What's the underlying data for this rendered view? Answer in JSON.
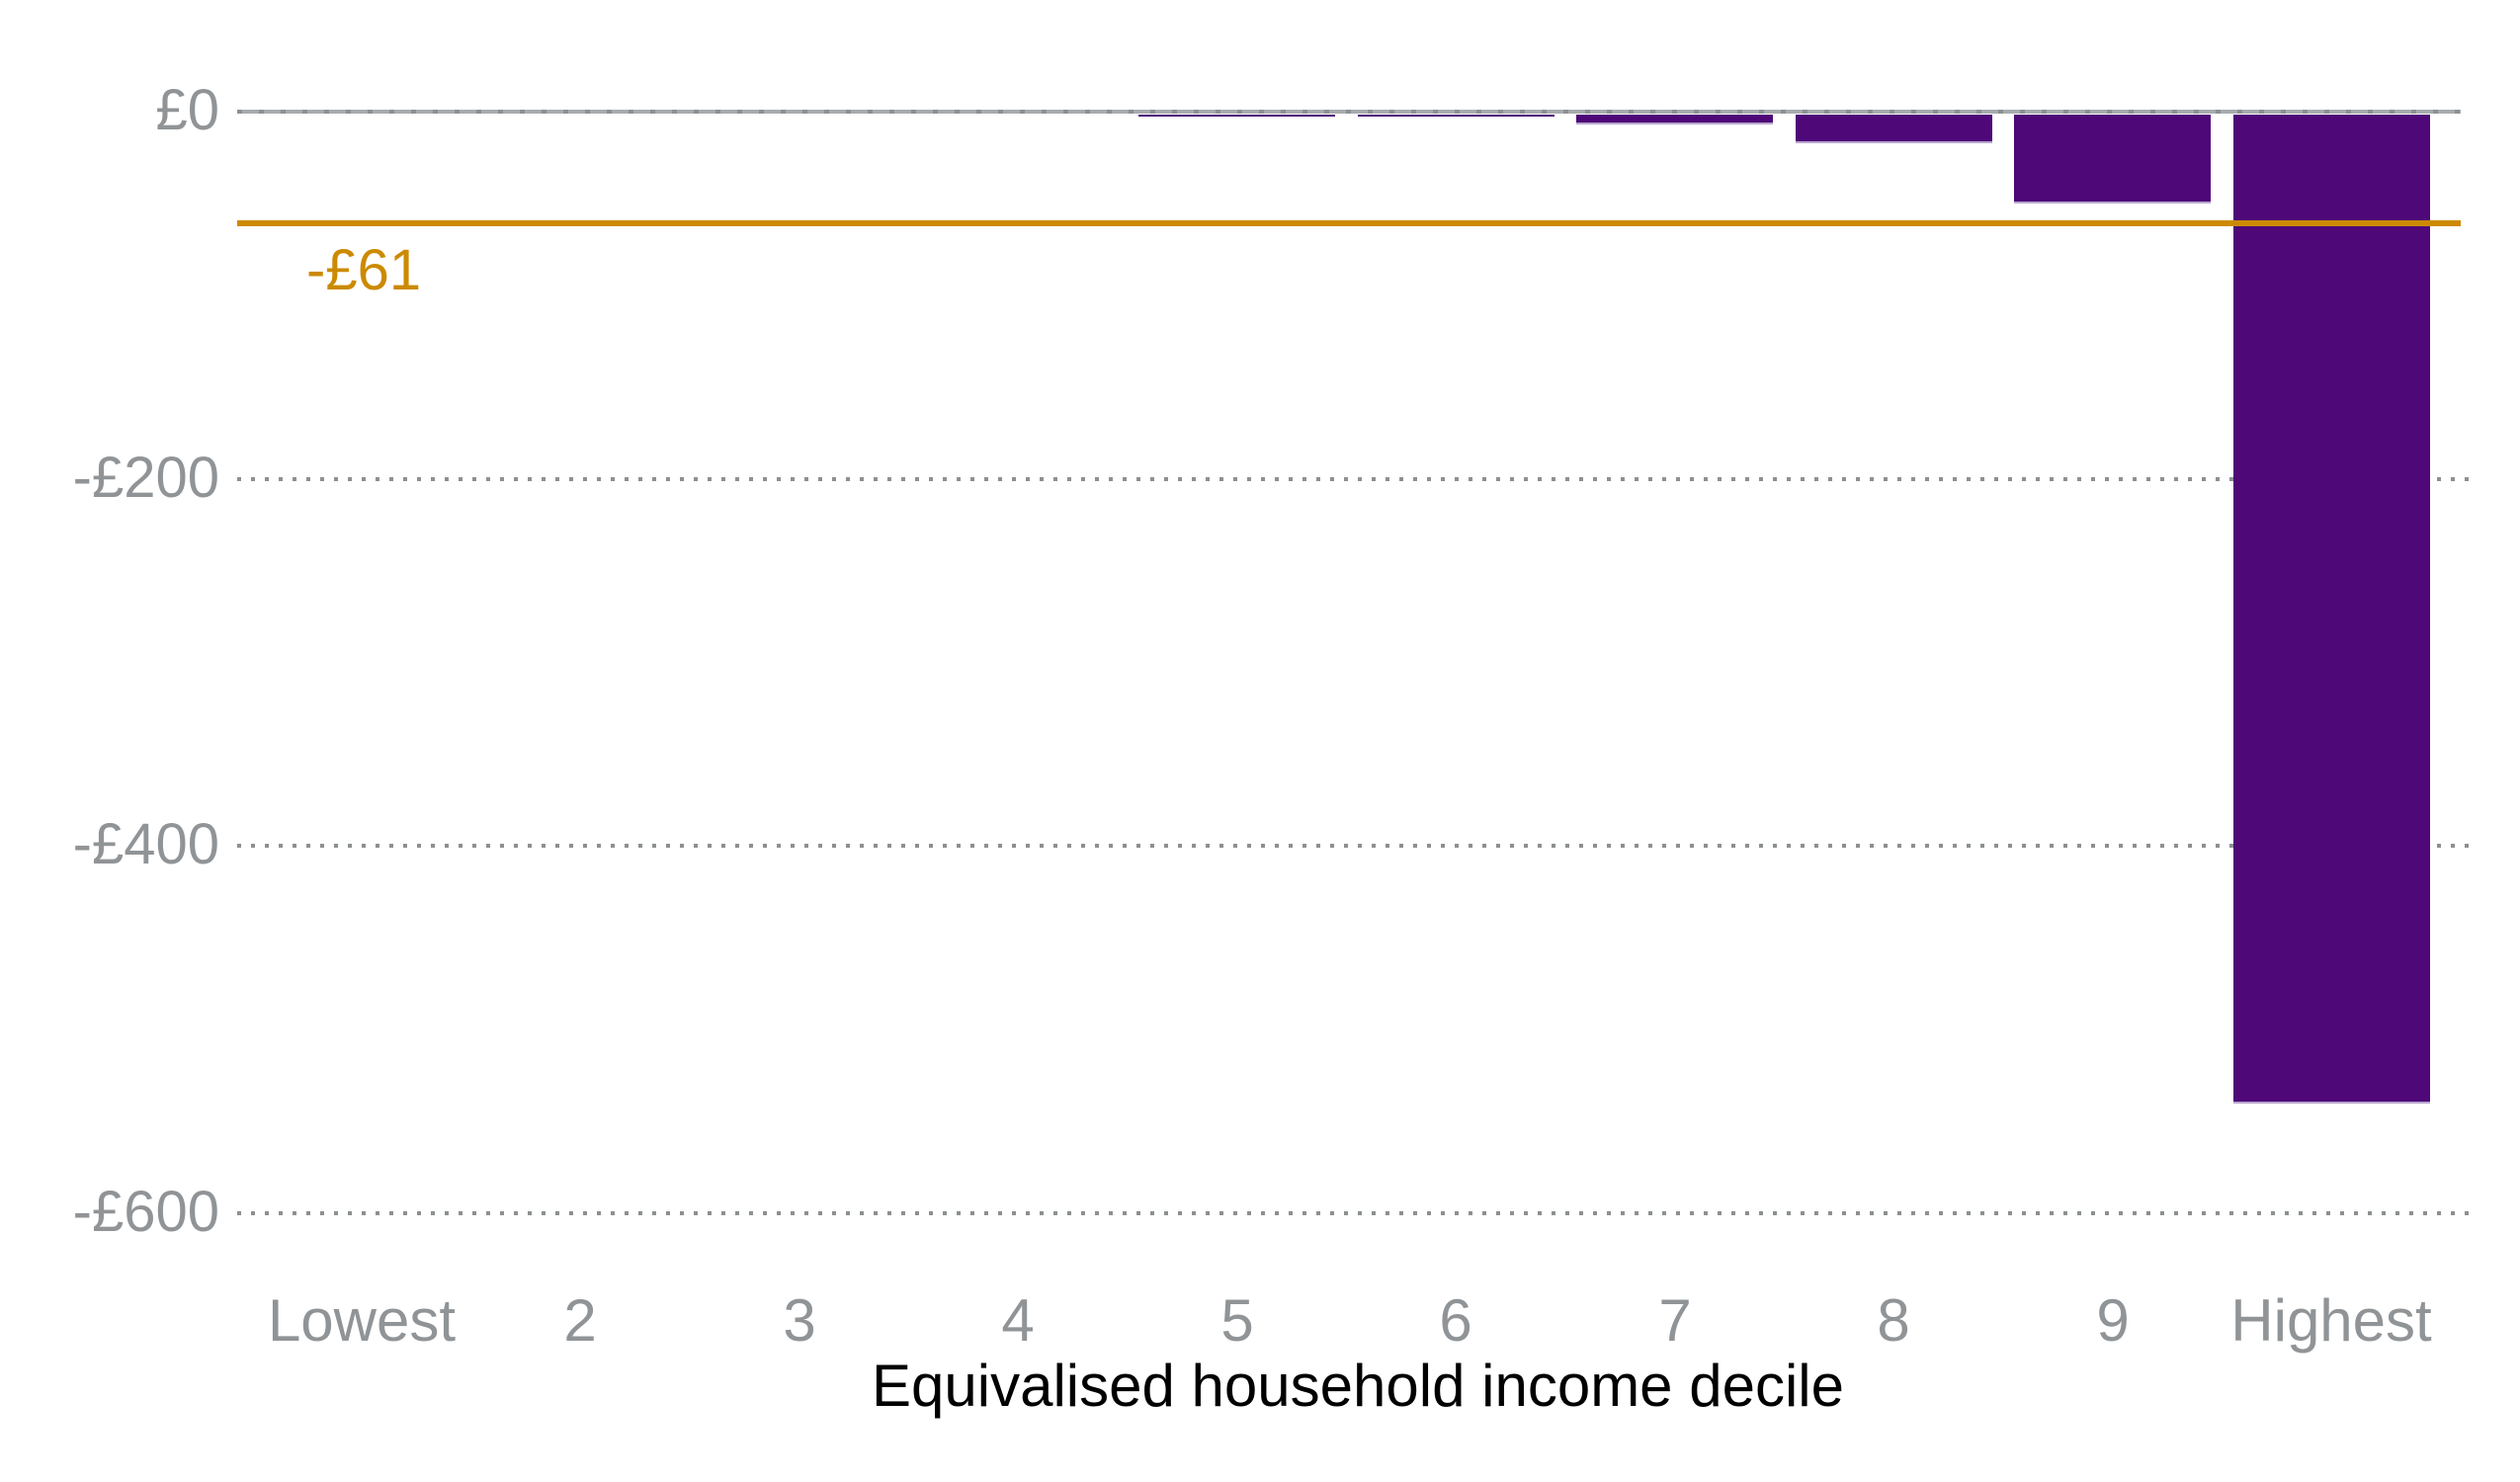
{
  "chart_data": {
    "type": "bar",
    "title": "",
    "categories": [
      "Lowest",
      "2",
      "3",
      "4",
      "5",
      "6",
      "7",
      "8",
      "9",
      "Highest"
    ],
    "values": [
      0,
      0,
      0,
      0,
      -1,
      -2,
      -7,
      -17,
      -50,
      -540
    ],
    "xlabel": "Equivalised household income decile",
    "ylabel": "",
    "ylim": [
      -600,
      0
    ],
    "y_ticks": [
      {
        "value": 0,
        "label": "£0"
      },
      {
        "value": -200,
        "label": "-£200"
      },
      {
        "value": -400,
        "label": "-£400"
      },
      {
        "value": -600,
        "label": "-£600"
      }
    ],
    "reference_line": {
      "value": -61,
      "label": "-£61"
    },
    "grid": "horizontal-dotted",
    "legend": "none",
    "colors": {
      "bar": "#4E0878",
      "bar_bottom_edge": "#B9A7CE",
      "reference_line": "#CC8A00",
      "axis_line": "#A8ABAD",
      "axis_dash": "#8C9093",
      "grid_dot": "#8C9093",
      "tick_text": "#909497",
      "xlabel_text": "#000000"
    }
  }
}
